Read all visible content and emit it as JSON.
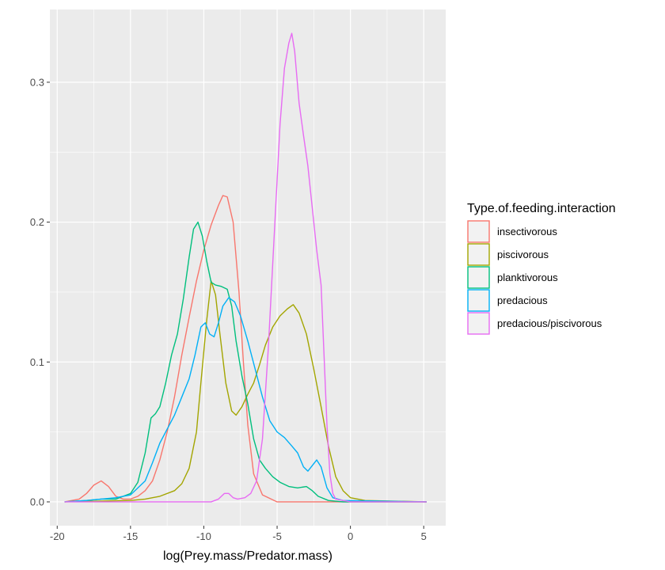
{
  "chart_data": {
    "type": "line",
    "title": "",
    "xlabel": "log(Prey.mass/Predator.mass)",
    "ylabel": "",
    "xlim": [
      -20.5,
      6.5
    ],
    "ylim": [
      -0.017,
      0.352
    ],
    "x_ticks": [
      -20,
      -15,
      -10,
      -5,
      0,
      5
    ],
    "x_tick_labels": [
      "-20",
      "-15",
      "-10",
      "-5",
      "0",
      "5"
    ],
    "y_ticks": [
      0.0,
      0.1,
      0.2,
      0.3
    ],
    "y_tick_labels": [
      "0.0",
      "0.1",
      "0.2",
      "0.3"
    ],
    "grid": true,
    "legend": {
      "title": "Type.of.feeding.interaction",
      "position": "right"
    },
    "series": [
      {
        "name": "insectivorous",
        "color": "#F8766D",
        "points": [
          [
            -19.5,
            0.0
          ],
          [
            -18.5,
            0.002
          ],
          [
            -18.0,
            0.006
          ],
          [
            -17.5,
            0.012
          ],
          [
            -17.0,
            0.015
          ],
          [
            -16.5,
            0.011
          ],
          [
            -16.0,
            0.004
          ],
          [
            -15.5,
            0.002
          ],
          [
            -15.0,
            0.002
          ],
          [
            -14.5,
            0.004
          ],
          [
            -14.0,
            0.008
          ],
          [
            -13.5,
            0.015
          ],
          [
            -13.0,
            0.03
          ],
          [
            -12.5,
            0.05
          ],
          [
            -12.0,
            0.075
          ],
          [
            -11.5,
            0.105
          ],
          [
            -11.0,
            0.132
          ],
          [
            -10.5,
            0.158
          ],
          [
            -10.0,
            0.18
          ],
          [
            -9.5,
            0.198
          ],
          [
            -9.0,
            0.212
          ],
          [
            -8.7,
            0.219
          ],
          [
            -8.4,
            0.218
          ],
          [
            -8.0,
            0.2
          ],
          [
            -7.6,
            0.15
          ],
          [
            -7.3,
            0.1
          ],
          [
            -7.0,
            0.055
          ],
          [
            -6.6,
            0.02
          ],
          [
            -6.0,
            0.005
          ],
          [
            -5.0,
            0.0
          ],
          [
            5.2,
            0.0
          ]
        ]
      },
      {
        "name": "piscivorous",
        "color": "#A3A500",
        "points": [
          [
            -19.5,
            0.0
          ],
          [
            -15.0,
            0.001
          ],
          [
            -14.0,
            0.002
          ],
          [
            -13.0,
            0.004
          ],
          [
            -12.0,
            0.008
          ],
          [
            -11.5,
            0.013
          ],
          [
            -11.0,
            0.024
          ],
          [
            -10.5,
            0.05
          ],
          [
            -10.2,
            0.085
          ],
          [
            -9.8,
            0.13
          ],
          [
            -9.5,
            0.158
          ],
          [
            -9.2,
            0.148
          ],
          [
            -8.9,
            0.12
          ],
          [
            -8.5,
            0.085
          ],
          [
            -8.1,
            0.065
          ],
          [
            -7.8,
            0.062
          ],
          [
            -7.4,
            0.068
          ],
          [
            -7.0,
            0.077
          ],
          [
            -6.6,
            0.085
          ],
          [
            -6.2,
            0.098
          ],
          [
            -5.8,
            0.112
          ],
          [
            -5.3,
            0.125
          ],
          [
            -4.8,
            0.133
          ],
          [
            -4.3,
            0.138
          ],
          [
            -3.9,
            0.141
          ],
          [
            -3.5,
            0.135
          ],
          [
            -3.0,
            0.12
          ],
          [
            -2.5,
            0.095
          ],
          [
            -2.0,
            0.068
          ],
          [
            -1.5,
            0.04
          ],
          [
            -1.0,
            0.018
          ],
          [
            -0.5,
            0.008
          ],
          [
            0.0,
            0.003
          ],
          [
            1.0,
            0.001
          ],
          [
            5.2,
            0.0
          ]
        ]
      },
      {
        "name": "planktivorous",
        "color": "#00BF7D",
        "points": [
          [
            -19.5,
            0.0
          ],
          [
            -18.0,
            0.001
          ],
          [
            -17.0,
            0.002
          ],
          [
            -16.0,
            0.002
          ],
          [
            -15.0,
            0.006
          ],
          [
            -14.5,
            0.014
          ],
          [
            -14.0,
            0.035
          ],
          [
            -13.6,
            0.06
          ],
          [
            -13.3,
            0.063
          ],
          [
            -13.0,
            0.068
          ],
          [
            -12.6,
            0.085
          ],
          [
            -12.2,
            0.105
          ],
          [
            -11.8,
            0.12
          ],
          [
            -11.4,
            0.145
          ],
          [
            -11.0,
            0.175
          ],
          [
            -10.7,
            0.195
          ],
          [
            -10.4,
            0.2
          ],
          [
            -10.1,
            0.19
          ],
          [
            -9.8,
            0.172
          ],
          [
            -9.5,
            0.157
          ],
          [
            -9.2,
            0.155
          ],
          [
            -8.8,
            0.154
          ],
          [
            -8.4,
            0.152
          ],
          [
            -8.1,
            0.14
          ],
          [
            -7.8,
            0.115
          ],
          [
            -7.4,
            0.09
          ],
          [
            -7.0,
            0.07
          ],
          [
            -6.6,
            0.045
          ],
          [
            -6.2,
            0.03
          ],
          [
            -5.8,
            0.024
          ],
          [
            -5.3,
            0.018
          ],
          [
            -4.8,
            0.014
          ],
          [
            -4.2,
            0.011
          ],
          [
            -3.6,
            0.01
          ],
          [
            -3.0,
            0.011
          ],
          [
            -2.6,
            0.008
          ],
          [
            -2.2,
            0.004
          ],
          [
            -1.5,
            0.001
          ],
          [
            -0.5,
            0.0
          ],
          [
            5.2,
            0.0
          ]
        ]
      },
      {
        "name": "predacious",
        "color": "#00B0F6",
        "points": [
          [
            -19.5,
            0.0
          ],
          [
            -18.0,
            0.001
          ],
          [
            -17.0,
            0.002
          ],
          [
            -16.0,
            0.003
          ],
          [
            -15.0,
            0.005
          ],
          [
            -14.0,
            0.015
          ],
          [
            -13.5,
            0.028
          ],
          [
            -13.0,
            0.042
          ],
          [
            -12.5,
            0.052
          ],
          [
            -12.0,
            0.062
          ],
          [
            -11.5,
            0.075
          ],
          [
            -11.0,
            0.088
          ],
          [
            -10.6,
            0.105
          ],
          [
            -10.2,
            0.125
          ],
          [
            -9.9,
            0.128
          ],
          [
            -9.6,
            0.12
          ],
          [
            -9.3,
            0.118
          ],
          [
            -9.0,
            0.128
          ],
          [
            -8.7,
            0.14
          ],
          [
            -8.3,
            0.146
          ],
          [
            -7.9,
            0.143
          ],
          [
            -7.5,
            0.133
          ],
          [
            -7.0,
            0.115
          ],
          [
            -6.5,
            0.095
          ],
          [
            -6.0,
            0.075
          ],
          [
            -5.5,
            0.058
          ],
          [
            -5.0,
            0.05
          ],
          [
            -4.5,
            0.046
          ],
          [
            -4.0,
            0.04
          ],
          [
            -3.6,
            0.035
          ],
          [
            -3.2,
            0.025
          ],
          [
            -2.9,
            0.022
          ],
          [
            -2.6,
            0.026
          ],
          [
            -2.3,
            0.03
          ],
          [
            -2.0,
            0.025
          ],
          [
            -1.6,
            0.01
          ],
          [
            -1.2,
            0.003
          ],
          [
            -0.5,
            0.001
          ],
          [
            5.2,
            0.0
          ]
        ]
      },
      {
        "name": "predacious/piscivorous",
        "color": "#E76BF3",
        "points": [
          [
            -19.5,
            0.0
          ],
          [
            -10.0,
            0.0
          ],
          [
            -9.5,
            0.0
          ],
          [
            -9.0,
            0.002
          ],
          [
            -8.6,
            0.006
          ],
          [
            -8.3,
            0.006
          ],
          [
            -8.0,
            0.003
          ],
          [
            -7.7,
            0.002
          ],
          [
            -7.2,
            0.003
          ],
          [
            -6.8,
            0.006
          ],
          [
            -6.4,
            0.015
          ],
          [
            -6.0,
            0.045
          ],
          [
            -5.6,
            0.11
          ],
          [
            -5.2,
            0.19
          ],
          [
            -4.8,
            0.27
          ],
          [
            -4.5,
            0.31
          ],
          [
            -4.2,
            0.328
          ],
          [
            -4.0,
            0.335
          ],
          [
            -3.8,
            0.322
          ],
          [
            -3.5,
            0.285
          ],
          [
            -3.2,
            0.262
          ],
          [
            -2.9,
            0.24
          ],
          [
            -2.6,
            0.21
          ],
          [
            -2.3,
            0.18
          ],
          [
            -2.0,
            0.155
          ],
          [
            -1.8,
            0.105
          ],
          [
            -1.6,
            0.055
          ],
          [
            -1.4,
            0.02
          ],
          [
            -1.2,
            0.006
          ],
          [
            -1.0,
            0.002
          ],
          [
            0.0,
            0.0
          ],
          [
            5.2,
            0.0
          ]
        ]
      }
    ]
  }
}
